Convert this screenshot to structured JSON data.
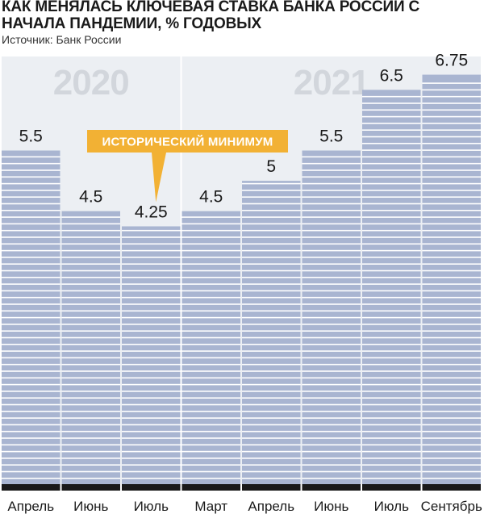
{
  "header": {
    "title": "КАК МЕНЯЛАСЬ КЛЮЧЕВАЯ СТАВКА БАНКА РОССИИ С НАЧАЛА ПАНДЕМИИ, % ГОДОВЫХ",
    "source": "Источник: Банк России"
  },
  "colors": {
    "bar": "#a9b5d1",
    "bar_stripe": "#ffffff",
    "panel": "#eceff3",
    "year_text": "#d2d6dc",
    "baseline": "#1a1a1a",
    "callout": "#f2b134"
  },
  "chart_data": {
    "type": "bar",
    "title": "КАК МЕНЯЛАСЬ КЛЮЧЕВАЯ СТАВКА БАНКА РОССИИ С НАЧАЛА ПАНДЕМИИ, % ГОДОВЫХ",
    "xlabel": "",
    "ylabel": "",
    "ylim": [
      0,
      7.05
    ],
    "grid": false,
    "groups": [
      {
        "label": "2020",
        "start": 0,
        "end": 2
      },
      {
        "label": "2021",
        "start": 3,
        "end": 7
      }
    ],
    "categories": [
      "Апрель",
      "Июнь",
      "Июль",
      "Март",
      "Апрель",
      "Июнь",
      "Июль",
      "Сентябрь"
    ],
    "values": [
      5.5,
      4.5,
      4.25,
      4.5,
      5,
      5.5,
      6.5,
      6.75
    ],
    "value_labels": [
      "5.5",
      "4.5",
      "4.25",
      "4.5",
      "5",
      "5.5",
      "6.5",
      "6.75"
    ],
    "annotation": {
      "text": "ИСТОРИЧЕСКИЙ МИНИМУМ",
      "index": 2
    }
  }
}
